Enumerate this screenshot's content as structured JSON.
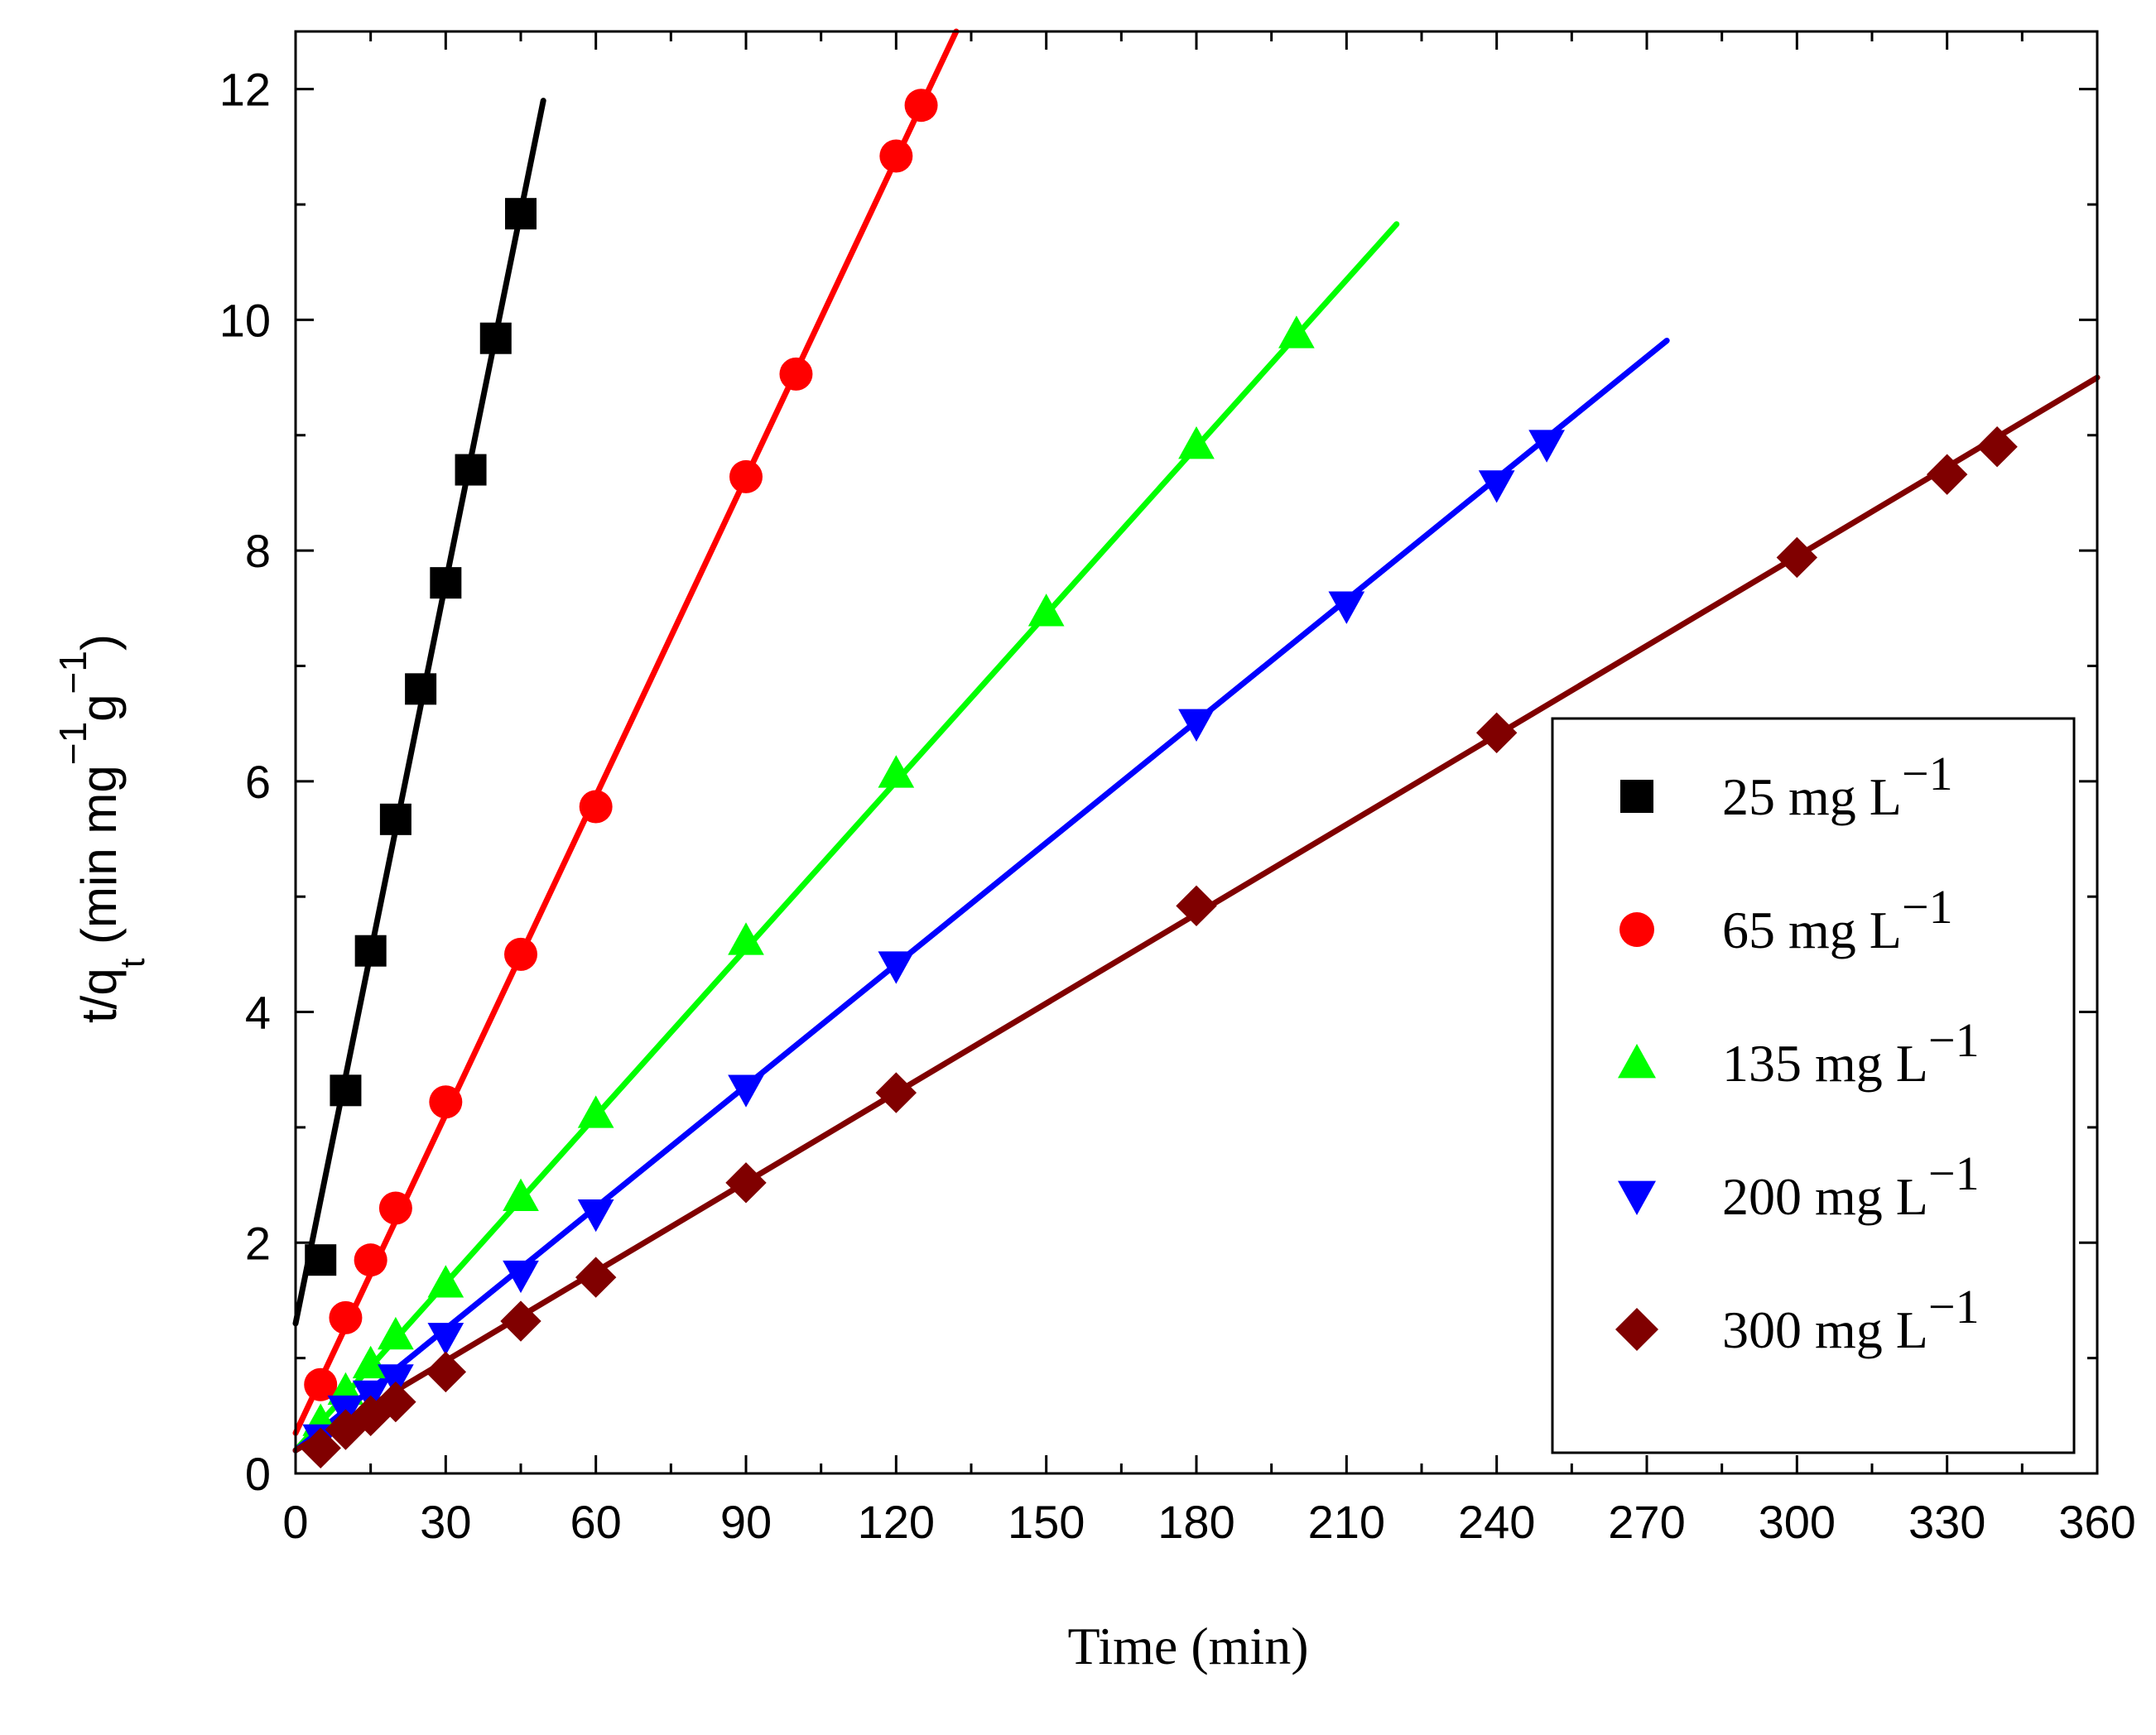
{
  "chart_data": {
    "type": "scatter",
    "xlabel": "Time (min)",
    "ylabel": {
      "base": "t/q",
      "sub": "t",
      "unit_open": " (min mg",
      "sup1": "−1",
      "g": "g",
      "sup2": "−1",
      "unit_close": ")"
    },
    "xlim": [
      0,
      360
    ],
    "ylim": [
      0,
      12.5
    ],
    "x_ticks": [
      0,
      30,
      60,
      90,
      120,
      150,
      180,
      210,
      240,
      270,
      300,
      330,
      360
    ],
    "y_ticks": [
      0,
      2,
      4,
      6,
      8,
      10,
      12
    ],
    "grid": false,
    "legend_position": "bottom-right",
    "series": [
      {
        "name": "25 mg L",
        "name_sup": "−1",
        "marker": "square",
        "color": "#000000",
        "x": [
          5,
          10,
          15,
          20,
          25,
          30,
          35,
          40,
          45
        ],
        "y": [
          1.85,
          3.32,
          4.53,
          5.67,
          6.8,
          7.72,
          8.7,
          9.84,
          10.92
        ],
        "fit": {
          "x": [
            0,
            49.5
          ],
          "y": [
            1.3,
            11.9
          ]
        }
      },
      {
        "name": "65 mg L",
        "name_sup": "−1",
        "marker": "circle",
        "color": "#ff0000",
        "x": [
          5,
          10,
          15,
          20,
          30,
          45,
          60,
          90,
          100,
          120,
          125
        ],
        "y": [
          0.77,
          1.35,
          1.85,
          2.3,
          3.22,
          4.5,
          5.78,
          8.64,
          9.53,
          11.42,
          11.86
        ],
        "fit": {
          "x": [
            0,
            132
          ],
          "y": [
            0.35,
            12.5
          ]
        }
      },
      {
        "name": "135 mg L",
        "name_sup": "−1",
        "marker": "triangle-up",
        "color": "#00ff00",
        "x": [
          5,
          10,
          15,
          20,
          30,
          45,
          60,
          90,
          120,
          150,
          180,
          200
        ],
        "y": [
          0.45,
          0.72,
          0.95,
          1.2,
          1.65,
          2.4,
          3.12,
          4.62,
          6.07,
          7.47,
          8.92,
          9.88
        ],
        "fit": {
          "x": [
            0,
            220
          ],
          "y": [
            0.2,
            10.83
          ]
        }
      },
      {
        "name": "200 mg L",
        "name_sup": "−1",
        "marker": "triangle-down",
        "color": "#0000ff",
        "x": [
          5,
          10,
          15,
          20,
          30,
          45,
          60,
          90,
          120,
          180,
          210,
          240,
          250
        ],
        "y": [
          0.3,
          0.55,
          0.68,
          0.82,
          1.18,
          1.72,
          2.25,
          3.33,
          4.4,
          6.5,
          7.52,
          8.57,
          8.92
        ],
        "fit": {
          "x": [
            0,
            274
          ],
          "y": [
            0.2,
            9.82
          ]
        }
      },
      {
        "name": "300 mg L",
        "name_sup": "−1",
        "marker": "diamond",
        "color": "#800000",
        "x": [
          5,
          10,
          15,
          20,
          30,
          45,
          60,
          90,
          120,
          180,
          240,
          300,
          330,
          340
        ],
        "y": [
          0.22,
          0.38,
          0.5,
          0.62,
          0.88,
          1.32,
          1.7,
          2.52,
          3.3,
          4.92,
          6.42,
          7.94,
          8.66,
          8.9
        ],
        "fit": {
          "x": [
            0,
            360
          ],
          "y": [
            0.2,
            9.5
          ]
        }
      }
    ]
  }
}
